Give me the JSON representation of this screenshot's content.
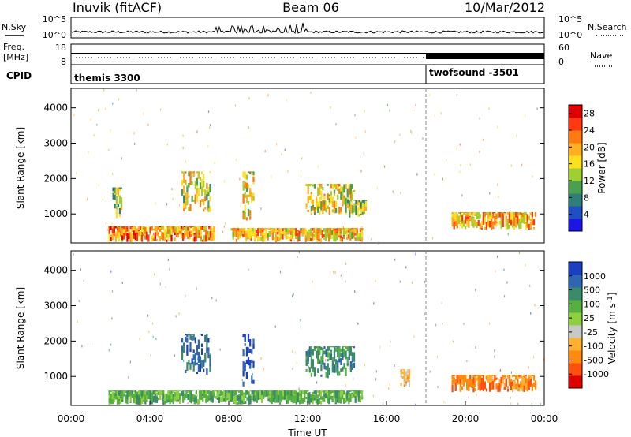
{
  "header": {
    "station": "Inuvik (fitACF)",
    "beam": "Beam 06",
    "date": "10/Mar/2012"
  },
  "top_panels": {
    "nsky_label": "N.Sky",
    "nsearch_label": "N.Search",
    "power_left_ticks": [
      "10^5",
      "10^0"
    ],
    "power_right_ticks": [
      "10^5",
      "10^0"
    ],
    "freq_label": "Freq.",
    "freq_unit": "[MHz]",
    "freq_ticks": [
      "18",
      "8"
    ],
    "nave_label": "Nave",
    "nave_ticks": [
      "60",
      "0"
    ],
    "cpid_label": "CPID",
    "cpid_segments": [
      {
        "name": "themis 3300",
        "start_hour": 0,
        "end_hour": 18.0
      },
      {
        "name": "twofsound -3501",
        "start_hour": 18.0,
        "end_hour": 24
      }
    ]
  },
  "x_axis": {
    "label": "Time UT",
    "ticks": [
      "00:00",
      "04:00",
      "08:00",
      "12:00",
      "16:00",
      "20:00",
      "00:00"
    ]
  },
  "chart_data": [
    {
      "type": "heatmap",
      "panel": "power",
      "ylabel": "Slant Range [km]",
      "yticks": [
        1000,
        2000,
        3000,
        4000
      ],
      "ylim": [
        180,
        4550
      ],
      "xlim_hours": [
        0,
        24
      ],
      "colorbar": {
        "label": "Power [dB]",
        "ticks": [
          4,
          8,
          12,
          16,
          20,
          24,
          28
        ],
        "range": [
          0,
          30
        ],
        "colors": [
          "#1b16e6",
          "#1f4fc0",
          "#2f7f78",
          "#4aa04f",
          "#9fcf30",
          "#ffe020",
          "#ffb020",
          "#ff7a10",
          "#ff3a10",
          "#e00000"
        ]
      },
      "echo_regions": [
        {
          "t_start": 1.9,
          "t_end": 7.3,
          "r_low": 200,
          "r_high": 650,
          "level": 22
        },
        {
          "t_start": 8.1,
          "t_end": 14.8,
          "r_low": 200,
          "r_high": 600,
          "level": 19
        },
        {
          "t_start": 2.1,
          "t_end": 2.6,
          "r_low": 850,
          "r_high": 1750,
          "level": 12
        },
        {
          "t_start": 5.6,
          "t_end": 7.1,
          "r_low": 1050,
          "r_high": 2200,
          "level": 16
        },
        {
          "t_start": 8.7,
          "t_end": 9.3,
          "r_low": 700,
          "r_high": 2200,
          "level": 18
        },
        {
          "t_start": 11.9,
          "t_end": 14.4,
          "r_low": 950,
          "r_high": 1850,
          "level": 17
        },
        {
          "t_start": 14.0,
          "t_end": 15.0,
          "r_low": 900,
          "r_high": 1400,
          "level": 13
        },
        {
          "t_start": 19.3,
          "t_end": 23.6,
          "r_low": 550,
          "r_high": 1050,
          "level": 20
        }
      ]
    },
    {
      "type": "heatmap",
      "panel": "velocity",
      "ylabel": "Slant Range [km]",
      "yticks": [
        1000,
        2000,
        3000,
        4000
      ],
      "ylim": [
        180,
        4550
      ],
      "xlim_hours": [
        0,
        24
      ],
      "colorbar": {
        "label": "Velocity [m s^-1]",
        "ticks": [
          1000,
          500,
          100,
          25,
          -25,
          -100,
          -500,
          -1000
        ],
        "colors": [
          "#1a3fc0",
          "#2e66b0",
          "#3c8a6a",
          "#55b040",
          "#8fd040",
          "#c8c8c8",
          "#ffb030",
          "#ff8a10",
          "#ff5010",
          "#e00000"
        ]
      },
      "echo_regions": [
        {
          "t_start": 1.9,
          "t_end": 14.8,
          "r_low": 200,
          "r_high": 600,
          "velocity": 60
        },
        {
          "t_start": 5.6,
          "t_end": 7.1,
          "r_low": 1050,
          "r_high": 2200,
          "velocity": 600
        },
        {
          "t_start": 8.7,
          "t_end": 9.3,
          "r_low": 700,
          "r_high": 2200,
          "velocity": 900
        },
        {
          "t_start": 11.9,
          "t_end": 14.4,
          "r_low": 950,
          "r_high": 1850,
          "velocity": 150
        },
        {
          "t_start": 16.7,
          "t_end": 17.2,
          "r_low": 700,
          "r_high": 1200,
          "velocity": -300
        },
        {
          "t_start": 19.3,
          "t_end": 23.6,
          "r_low": 550,
          "r_high": 1050,
          "velocity": -400
        }
      ]
    }
  ]
}
